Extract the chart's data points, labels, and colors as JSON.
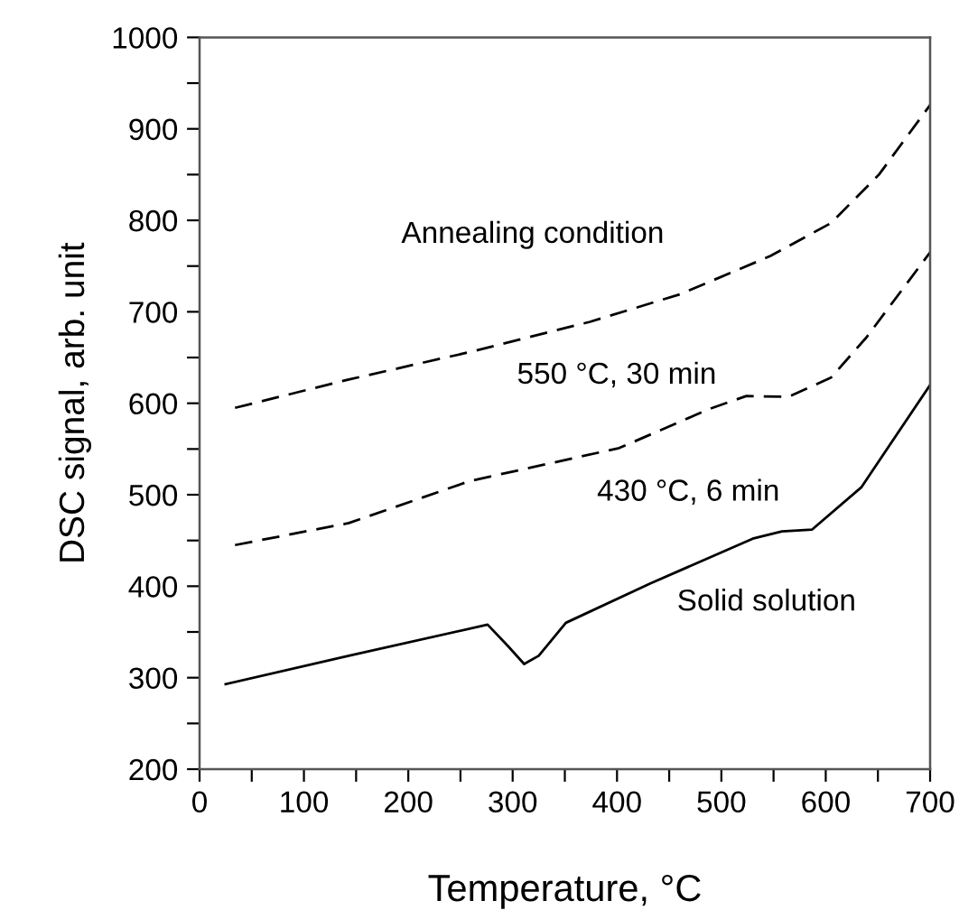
{
  "chart_data": {
    "type": "line",
    "xlabel": "Temperature, °C",
    "ylabel": "DSC signal, arb. unit",
    "xlim": [
      0,
      700
    ],
    "xticks": [
      0,
      {
        "value": 50,
        "label": null
      },
      100,
      {
        "value": 150,
        "label": null
      },
      200,
      {
        "value": 250,
        "label": null
      },
      300,
      {
        "value": 350,
        "label": null
      },
      400,
      {
        "value": 450,
        "label": null
      },
      500,
      {
        "value": 550,
        "label": null
      },
      600,
      {
        "value": 650,
        "label": null
      },
      700
    ],
    "ylim": [
      200,
      1000
    ],
    "yticks": [
      200,
      {
        "value": 250,
        "label": null
      },
      300,
      {
        "value": 350,
        "label": null
      },
      400,
      {
        "value": 450,
        "label": null
      },
      500,
      {
        "value": 550,
        "label": null
      },
      600,
      {
        "value": 650,
        "label": null
      },
      700,
      {
        "value": 750,
        "label": null
      },
      800,
      {
        "value": 850,
        "label": null
      },
      900,
      {
        "value": 950,
        "label": null
      },
      1000
    ],
    "grid": false,
    "marker": "none",
    "series": [
      {
        "color": "#000000",
        "line_style": "dashed",
        "x": [
          34,
          143,
          259,
          374,
          460,
          547,
          605,
          651,
          700
        ],
        "values": [
          595,
          626,
          656,
          689,
          719,
          761,
          797,
          850,
          926
        ]
      },
      {
        "color": "#000000",
        "line_style": "dashed",
        "x": [
          34,
          143,
          259,
          402,
          489,
          524,
          564,
          605,
          639,
          700
        ],
        "values": [
          445,
          469,
          515,
          551,
          594,
          608,
          607,
          628,
          672,
          765
        ]
      },
      {
        "color": "#000000",
        "line_style": "solid",
        "x": [
          25,
          143,
          276,
          296,
          311,
          325,
          351,
          432,
          530,
          558,
          587,
          634,
          700
        ],
        "values": [
          293,
          324,
          358,
          334,
          315,
          324,
          360,
          403,
          452,
          460,
          462,
          508,
          620
        ]
      }
    ],
    "annotations": [
      "Annealing condition",
      "550 °C, 30 min",
      "430 °C, 6 min",
      "Solid solution"
    ]
  }
}
